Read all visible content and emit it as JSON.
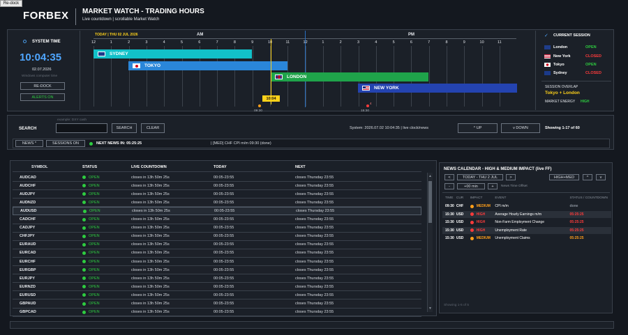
{
  "redock_tab": "Re-dock",
  "header": {
    "logo": "FORBEX",
    "title": "MARKET WATCH - TRADING HOURS",
    "subtitle": "Live countdown  |  scrollable Market Watch"
  },
  "system_time": {
    "label": "SYSTEM TIME",
    "time": "10:04:35",
    "date": "02.07.2026",
    "note": "Windows computer time",
    "redock_btn": "RE-DOCK",
    "alerts_btn": "ALERTS ON"
  },
  "timeline": {
    "date_label": "TODAY  |  THU 02 JUL 2026",
    "am": "AM",
    "pm": "PM",
    "hours": [
      "12",
      "1",
      "2",
      "3",
      "4",
      "5",
      "6",
      "7",
      "8",
      "9",
      "10",
      "11",
      "12",
      "1",
      "2",
      "3",
      "4",
      "5",
      "6",
      "7",
      "8",
      "9",
      "10",
      "11"
    ],
    "sessions": [
      {
        "name": "SYDNEY",
        "color": "#12c1c9",
        "flag": "au"
      },
      {
        "name": "TOKYO",
        "color": "#2a86d9",
        "flag": "jp"
      },
      {
        "name": "LONDON",
        "color": "#1fa34a",
        "flag": "gb"
      },
      {
        "name": "NEW YORK",
        "color": "#2443b0",
        "flag": "us"
      }
    ],
    "now_label": "10:04",
    "marker1": "09:30",
    "marker2": "15:30",
    "marker2_count": "4"
  },
  "current_session": {
    "title": "CURRENT SESSION",
    "rows": [
      {
        "city": "London",
        "status": "OPEN",
        "flag": "gb"
      },
      {
        "city": "New York",
        "status": "CLOSED",
        "flag": "us"
      },
      {
        "city": "Tokyo",
        "status": "OPEN",
        "flag": "jp"
      },
      {
        "city": "Sydney",
        "status": "CLOSED",
        "flag": "au"
      }
    ],
    "overlap_label": "SESSION OVERLAP",
    "overlap_value": "Tokyo + London",
    "energy_label": "MARKET ENERGY",
    "energy_value": "HIGH"
  },
  "search": {
    "label": "SEARCH",
    "hint": "example: DXY cash",
    "value": "",
    "search_btn": "SEARCH",
    "clear_btn": "CLEAR",
    "system_info": "System: 2026.07.02 10:04:35  |  live clock/news",
    "up_btn": "^  UP",
    "down_btn": "v  DOWN",
    "showing": "Showing 1-17 of 60"
  },
  "newsbar": {
    "news_btn": "NEWS *",
    "sessions_btn": "SESSIONS ON",
    "next_news": "NEXT NEWS IN: 05:25:25",
    "next_event": "|  [MED] CHF CPI m/m 09:30 (done)"
  },
  "table": {
    "headers": [
      "SYMBOL",
      "STATUS",
      "LIVE COUNTDOWN",
      "TODAY",
      "NEXT"
    ],
    "rows": [
      {
        "symbol": "AUDCAD",
        "status": "OPEN",
        "countdown": "closes in 13h 50m 25s",
        "today": "00:05-23:55",
        "next": "closes Thursday 23:55"
      },
      {
        "symbol": "AUDCHF",
        "status": "OPEN",
        "countdown": "closes in 13h 50m 25s",
        "today": "00:05-23:55",
        "next": "closes Thursday 23:55"
      },
      {
        "symbol": "AUDJPY",
        "status": "OPEN",
        "countdown": "closes in 13h 50m 25s",
        "today": "00:05-23:55",
        "next": "closes Thursday 23:55"
      },
      {
        "symbol": "AUDNZD",
        "status": "OPEN",
        "countdown": "closes in 13h 50m 25s",
        "today": "00:05-23:55",
        "next": "closes Thursday 23:55"
      },
      {
        "symbol": "AUDUSD",
        "status": "OPEN",
        "countdown": "closes in 13h 50m 25s",
        "today": "00:05-23:55",
        "next": "closes Thursday 23:55"
      },
      {
        "symbol": "CADCHF",
        "status": "OPEN",
        "countdown": "closes in 13h 50m 25s",
        "today": "00:05-23:55",
        "next": "closes Thursday 23:55"
      },
      {
        "symbol": "CADJPY",
        "status": "OPEN",
        "countdown": "closes in 13h 50m 25s",
        "today": "00:05-23:55",
        "next": "closes Thursday 23:55"
      },
      {
        "symbol": "CHFJPY",
        "status": "OPEN",
        "countdown": "closes in 13h 50m 25s",
        "today": "00:05-23:55",
        "next": "closes Thursday 23:55"
      },
      {
        "symbol": "EURAUD",
        "status": "OPEN",
        "countdown": "closes in 13h 50m 25s",
        "today": "00:05-23:55",
        "next": "closes Thursday 23:55"
      },
      {
        "symbol": "EURCAD",
        "status": "OPEN",
        "countdown": "closes in 13h 50m 25s",
        "today": "00:05-23:55",
        "next": "closes Thursday 23:55"
      },
      {
        "symbol": "EURCHF",
        "status": "OPEN",
        "countdown": "closes in 13h 50m 25s",
        "today": "00:05-23:55",
        "next": "closes Thursday 23:55"
      },
      {
        "symbol": "EURGBP",
        "status": "OPEN",
        "countdown": "closes in 13h 50m 25s",
        "today": "00:05-23:55",
        "next": "closes Thursday 23:55"
      },
      {
        "symbol": "EURJPY",
        "status": "OPEN",
        "countdown": "closes in 13h 50m 25s",
        "today": "00:05-23:55",
        "next": "closes Thursday 23:55"
      },
      {
        "symbol": "EURNZD",
        "status": "OPEN",
        "countdown": "closes in 13h 50m 25s",
        "today": "00:05-23:55",
        "next": "closes Thursday 23:55"
      },
      {
        "symbol": "EURUSD",
        "status": "OPEN",
        "countdown": "closes in 13h 50m 25s",
        "today": "00:05-23:55",
        "next": "closes Thursday 23:55"
      },
      {
        "symbol": "GBPAUD",
        "status": "OPEN",
        "countdown": "closes in 13h 50m 25s",
        "today": "00:05-23:55",
        "next": "closes Thursday 23:55"
      },
      {
        "symbol": "GBPCAD",
        "status": "OPEN",
        "countdown": "closes in 13h 50m 25s",
        "today": "00:05-23:55",
        "next": "closes Thursday 23:55"
      }
    ]
  },
  "news": {
    "title": "NEWS CALENDAR - HIGH & MEDIUM IMPACT (live FF)",
    "prev_btn": "<",
    "range": "TODAY - THU 2 JUL",
    "next_btn": ">",
    "filter": "HIGH+MED",
    "up": "^",
    "down": "v",
    "minus": "-",
    "offset": "+00 min",
    "plus": "+",
    "offset_label": "News Time Offset",
    "headers": [
      "TIME",
      "CUR",
      "IMPACT",
      "EVENT",
      "STATUS / COUNTDOWN"
    ],
    "rows": [
      {
        "time": "09:30",
        "cur": "CHF",
        "impact": "MEDIUM",
        "event": "CPI m/m",
        "status": "done"
      },
      {
        "time": "15:30",
        "cur": "USD",
        "impact": "HIGH",
        "event": "Average Hourly Earnings m/m",
        "status": "05:25:25"
      },
      {
        "time": "15:30",
        "cur": "USD",
        "impact": "HIGH",
        "event": "Non-Farm Employment Change",
        "status": "05:25:25"
      },
      {
        "time": "15:30",
        "cur": "USD",
        "impact": "HIGH",
        "event": "Unemployment Rate",
        "status": "05:25:25"
      },
      {
        "time": "15:30",
        "cur": "USD",
        "impact": "MEDIUM",
        "event": "Unemployment Claims",
        "status": "05:25:25"
      }
    ],
    "showing": "Showing 1-5 of 5"
  },
  "colors": {
    "open": "#2ecc40",
    "closed": "#ff3b3b",
    "accent": "#ffd21a",
    "medium": "#ff9f1a"
  }
}
